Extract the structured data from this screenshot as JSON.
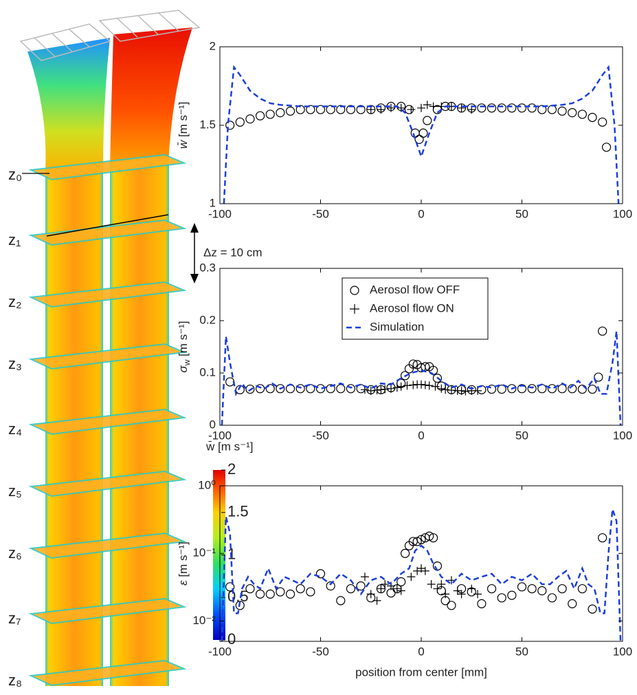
{
  "figure": {
    "z_labels": [
      "z₀",
      "z₁",
      "z₂",
      "z₃",
      "z₄",
      "z₅",
      "z₆",
      "z₇",
      "z₈"
    ],
    "dz_label": "Δz = 10 cm",
    "colorbar": {
      "label": "w̄ [m s⁻¹]",
      "lim": [
        0,
        2
      ],
      "ticks": [
        0,
        0.5,
        1,
        1.5,
        2
      ]
    }
  },
  "chart_data": [
    {
      "type": "scatter",
      "ylabel": {
        "main": "w̄",
        "unit": " [m s⁻¹]"
      },
      "xlim": [
        -100,
        100
      ],
      "xticks": [
        -100,
        -50,
        0,
        50,
        100
      ],
      "ylim": [
        1,
        2
      ],
      "yticks": [
        1,
        1.5,
        2
      ],
      "series": [
        {
          "marker": "o",
          "color": "#000000",
          "x": [
            -95,
            -90,
            -85,
            -80,
            -75,
            -70,
            -65,
            -60,
            -55,
            -50,
            -45,
            -40,
            -35,
            -30,
            -25,
            -20,
            -15,
            -10,
            -6,
            -3,
            -1,
            1,
            3,
            8,
            12,
            15,
            20,
            25,
            30,
            35,
            40,
            45,
            50,
            55,
            60,
            65,
            70,
            75,
            80,
            85,
            90,
            92
          ],
          "values": [
            1.5,
            1.52,
            1.54,
            1.56,
            1.57,
            1.58,
            1.59,
            1.6,
            1.6,
            1.6,
            1.6,
            1.6,
            1.6,
            1.6,
            1.6,
            1.61,
            1.62,
            1.62,
            1.6,
            1.45,
            1.41,
            1.45,
            1.53,
            1.6,
            1.62,
            1.62,
            1.61,
            1.61,
            1.61,
            1.61,
            1.61,
            1.61,
            1.61,
            1.61,
            1.6,
            1.6,
            1.59,
            1.58,
            1.57,
            1.55,
            1.52,
            1.36
          ]
        },
        {
          "marker": "+",
          "color": "#000000",
          "x": [
            -25,
            -20,
            -15,
            -10,
            -5,
            0,
            3,
            6,
            10,
            15,
            20,
            25
          ],
          "values": [
            1.6,
            1.6,
            1.61,
            1.61,
            1.6,
            1.61,
            1.63,
            1.62,
            1.62,
            1.62,
            1.61,
            1.6
          ]
        },
        {
          "marker": "dash",
          "color": "#1c3ee0",
          "x": [
            -98,
            -96,
            -93,
            -90,
            -85,
            -80,
            -75,
            -70,
            -60,
            -50,
            -40,
            -30,
            -20,
            -12,
            -8,
            -4,
            0,
            4,
            8,
            12,
            20,
            30,
            40,
            50,
            60,
            70,
            75,
            80,
            85,
            90,
            93,
            96,
            98
          ],
          "values": [
            1.0,
            1.5,
            1.87,
            1.82,
            1.72,
            1.67,
            1.64,
            1.63,
            1.62,
            1.62,
            1.62,
            1.62,
            1.62,
            1.62,
            1.58,
            1.45,
            1.3,
            1.45,
            1.58,
            1.62,
            1.62,
            1.62,
            1.62,
            1.62,
            1.62,
            1.63,
            1.64,
            1.67,
            1.72,
            1.82,
            1.87,
            1.5,
            1.0
          ]
        }
      ]
    },
    {
      "type": "scatter",
      "ylabel": {
        "main": "σ",
        "sub": "w",
        "unit": "  [m s⁻¹]"
      },
      "xlim": [
        -100,
        100
      ],
      "xticks": [
        -100,
        -50,
        0,
        50,
        100
      ],
      "ylim": [
        0,
        0.3
      ],
      "yticks": [
        0,
        0.1,
        0.2,
        0.3
      ],
      "legend": "top",
      "series": [
        {
          "name": "Aerosol flow OFF",
          "marker": "o",
          "color": "#000000",
          "x": [
            -95,
            -90,
            -85,
            -80,
            -75,
            -70,
            -65,
            -60,
            -55,
            -50,
            -45,
            -40,
            -35,
            -30,
            -25,
            -20,
            -15,
            -10,
            -8,
            -6,
            -4,
            -2,
            0,
            2,
            4,
            6,
            8,
            10,
            15,
            20,
            25,
            30,
            35,
            40,
            45,
            50,
            55,
            60,
            65,
            70,
            75,
            80,
            85,
            88,
            90
          ],
          "values": [
            0.083,
            0.068,
            0.069,
            0.07,
            0.07,
            0.07,
            0.07,
            0.07,
            0.07,
            0.07,
            0.07,
            0.07,
            0.07,
            0.07,
            0.068,
            0.068,
            0.072,
            0.08,
            0.095,
            0.108,
            0.117,
            0.116,
            0.11,
            0.112,
            0.112,
            0.105,
            0.09,
            0.075,
            0.068,
            0.068,
            0.068,
            0.068,
            0.069,
            0.069,
            0.07,
            0.07,
            0.07,
            0.07,
            0.07,
            0.07,
            0.07,
            0.069,
            0.069,
            0.092,
            0.18
          ]
        },
        {
          "name": "Aerosol flow ON",
          "marker": "+",
          "color": "#000000",
          "x": [
            -28,
            -25,
            -22,
            -20,
            -18,
            -15,
            -12,
            -10,
            -7,
            -4,
            -2,
            0,
            2,
            4,
            7,
            10,
            12,
            15,
            18,
            20,
            22,
            25,
            28
          ],
          "values": [
            0.068,
            0.066,
            0.067,
            0.068,
            0.069,
            0.07,
            0.072,
            0.074,
            0.076,
            0.077,
            0.078,
            0.078,
            0.077,
            0.076,
            0.074,
            0.07,
            0.068,
            0.067,
            0.066,
            0.066,
            0.065,
            0.066,
            0.066
          ]
        },
        {
          "name": "Simulation",
          "marker": "dash",
          "color": "#1c3ee0",
          "x": [
            -99,
            -97,
            -95,
            -92,
            -89,
            -86,
            -82,
            -78,
            -74,
            -70,
            -65,
            -60,
            -55,
            -50,
            -45,
            -40,
            -35,
            -30,
            -25,
            -20,
            -15,
            -10,
            -5,
            0,
            5,
            10,
            15,
            20,
            25,
            30,
            35,
            40,
            45,
            50,
            55,
            60,
            65,
            70,
            74,
            78,
            82,
            86,
            89,
            92,
            95,
            97,
            99
          ],
          "values": [
            0.0,
            0.17,
            0.12,
            0.06,
            0.08,
            0.065,
            0.075,
            0.07,
            0.08,
            0.07,
            0.078,
            0.072,
            0.078,
            0.07,
            0.075,
            0.08,
            0.072,
            0.078,
            0.07,
            0.08,
            0.078,
            0.09,
            0.1,
            0.105,
            0.1,
            0.085,
            0.072,
            0.078,
            0.07,
            0.075,
            0.072,
            0.078,
            0.07,
            0.076,
            0.072,
            0.078,
            0.07,
            0.08,
            0.072,
            0.085,
            0.07,
            0.09,
            0.06,
            0.06,
            0.12,
            0.18,
            0.0
          ]
        }
      ]
    },
    {
      "type": "scatter",
      "ylabel": {
        "main": "ε",
        "unit": " [m s⁻¹]"
      },
      "xlabel": "position from center [mm]",
      "xlim": [
        -100,
        100
      ],
      "xticks": [
        -100,
        -50,
        0,
        50,
        100
      ],
      "ylim": [
        0.005,
        1
      ],
      "yscale": "log",
      "yticks": [
        {
          "value": 0.01,
          "label": "10⁻²"
        },
        {
          "value": 0.1,
          "label": "10⁻¹"
        },
        {
          "value": 1,
          "label": "10⁰"
        }
      ],
      "series": [
        {
          "marker": "o",
          "color": "#000000",
          "x": [
            -95,
            -90,
            -85,
            -80,
            -75,
            -70,
            -65,
            -60,
            -55,
            -50,
            -45,
            -40,
            -35,
            -30,
            -25,
            -20,
            -15,
            -12,
            -10,
            -8,
            -6,
            -4,
            -2,
            0,
            2,
            4,
            6,
            8,
            10,
            12,
            15,
            20,
            25,
            30,
            35,
            40,
            45,
            50,
            55,
            60,
            65,
            70,
            75,
            80,
            85,
            90
          ],
          "values": [
            0.032,
            0.017,
            0.03,
            0.025,
            0.025,
            0.027,
            0.025,
            0.03,
            0.027,
            0.05,
            0.033,
            0.02,
            0.03,
            0.033,
            0.022,
            0.03,
            0.026,
            0.03,
            0.038,
            0.1,
            0.13,
            0.15,
            0.15,
            0.16,
            0.17,
            0.18,
            0.17,
            0.065,
            0.028,
            0.02,
            0.017,
            0.03,
            0.027,
            0.018,
            0.03,
            0.022,
            0.024,
            0.032,
            0.03,
            0.028,
            0.022,
            0.03,
            0.018,
            0.03,
            0.015,
            0.17
          ]
        },
        {
          "marker": "+",
          "color": "#000000",
          "x": [
            -28,
            -25,
            -22,
            -20,
            -18,
            -15,
            -12,
            -10,
            -5,
            -2,
            0,
            2,
            5,
            8,
            10,
            12,
            15,
            18,
            20,
            25,
            28
          ],
          "values": [
            0.045,
            0.025,
            0.02,
            0.03,
            0.035,
            0.033,
            0.03,
            0.028,
            0.045,
            0.055,
            0.06,
            0.055,
            0.035,
            0.03,
            0.035,
            0.025,
            0.04,
            0.028,
            0.025,
            0.03,
            0.025
          ]
        },
        {
          "marker": "dash",
          "color": "#1c3ee0",
          "x": [
            -99,
            -97,
            -95,
            -93,
            -91,
            -89,
            -86,
            -83,
            -80,
            -76,
            -72,
            -68,
            -64,
            -60,
            -55,
            -50,
            -45,
            -40,
            -35,
            -30,
            -25,
            -20,
            -15,
            -10,
            -6,
            -3,
            0,
            3,
            6,
            10,
            15,
            20,
            25,
            30,
            35,
            40,
            45,
            50,
            55,
            60,
            64,
            68,
            72,
            76,
            80,
            83,
            86,
            89,
            91,
            93,
            95,
            97,
            99
          ],
          "values": [
            0.005,
            0.35,
            0.2,
            0.013,
            0.013,
            0.03,
            0.045,
            0.035,
            0.03,
            0.06,
            0.03,
            0.045,
            0.04,
            0.035,
            0.05,
            0.045,
            0.035,
            0.05,
            0.04,
            0.025,
            0.04,
            0.045,
            0.035,
            0.05,
            0.06,
            0.11,
            0.13,
            0.11,
            0.07,
            0.045,
            0.035,
            0.05,
            0.04,
            0.045,
            0.05,
            0.035,
            0.045,
            0.04,
            0.05,
            0.035,
            0.035,
            0.045,
            0.055,
            0.03,
            0.06,
            0.035,
            0.03,
            0.013,
            0.013,
            0.1,
            0.45,
            0.3,
            0.005
          ]
        }
      ]
    }
  ]
}
